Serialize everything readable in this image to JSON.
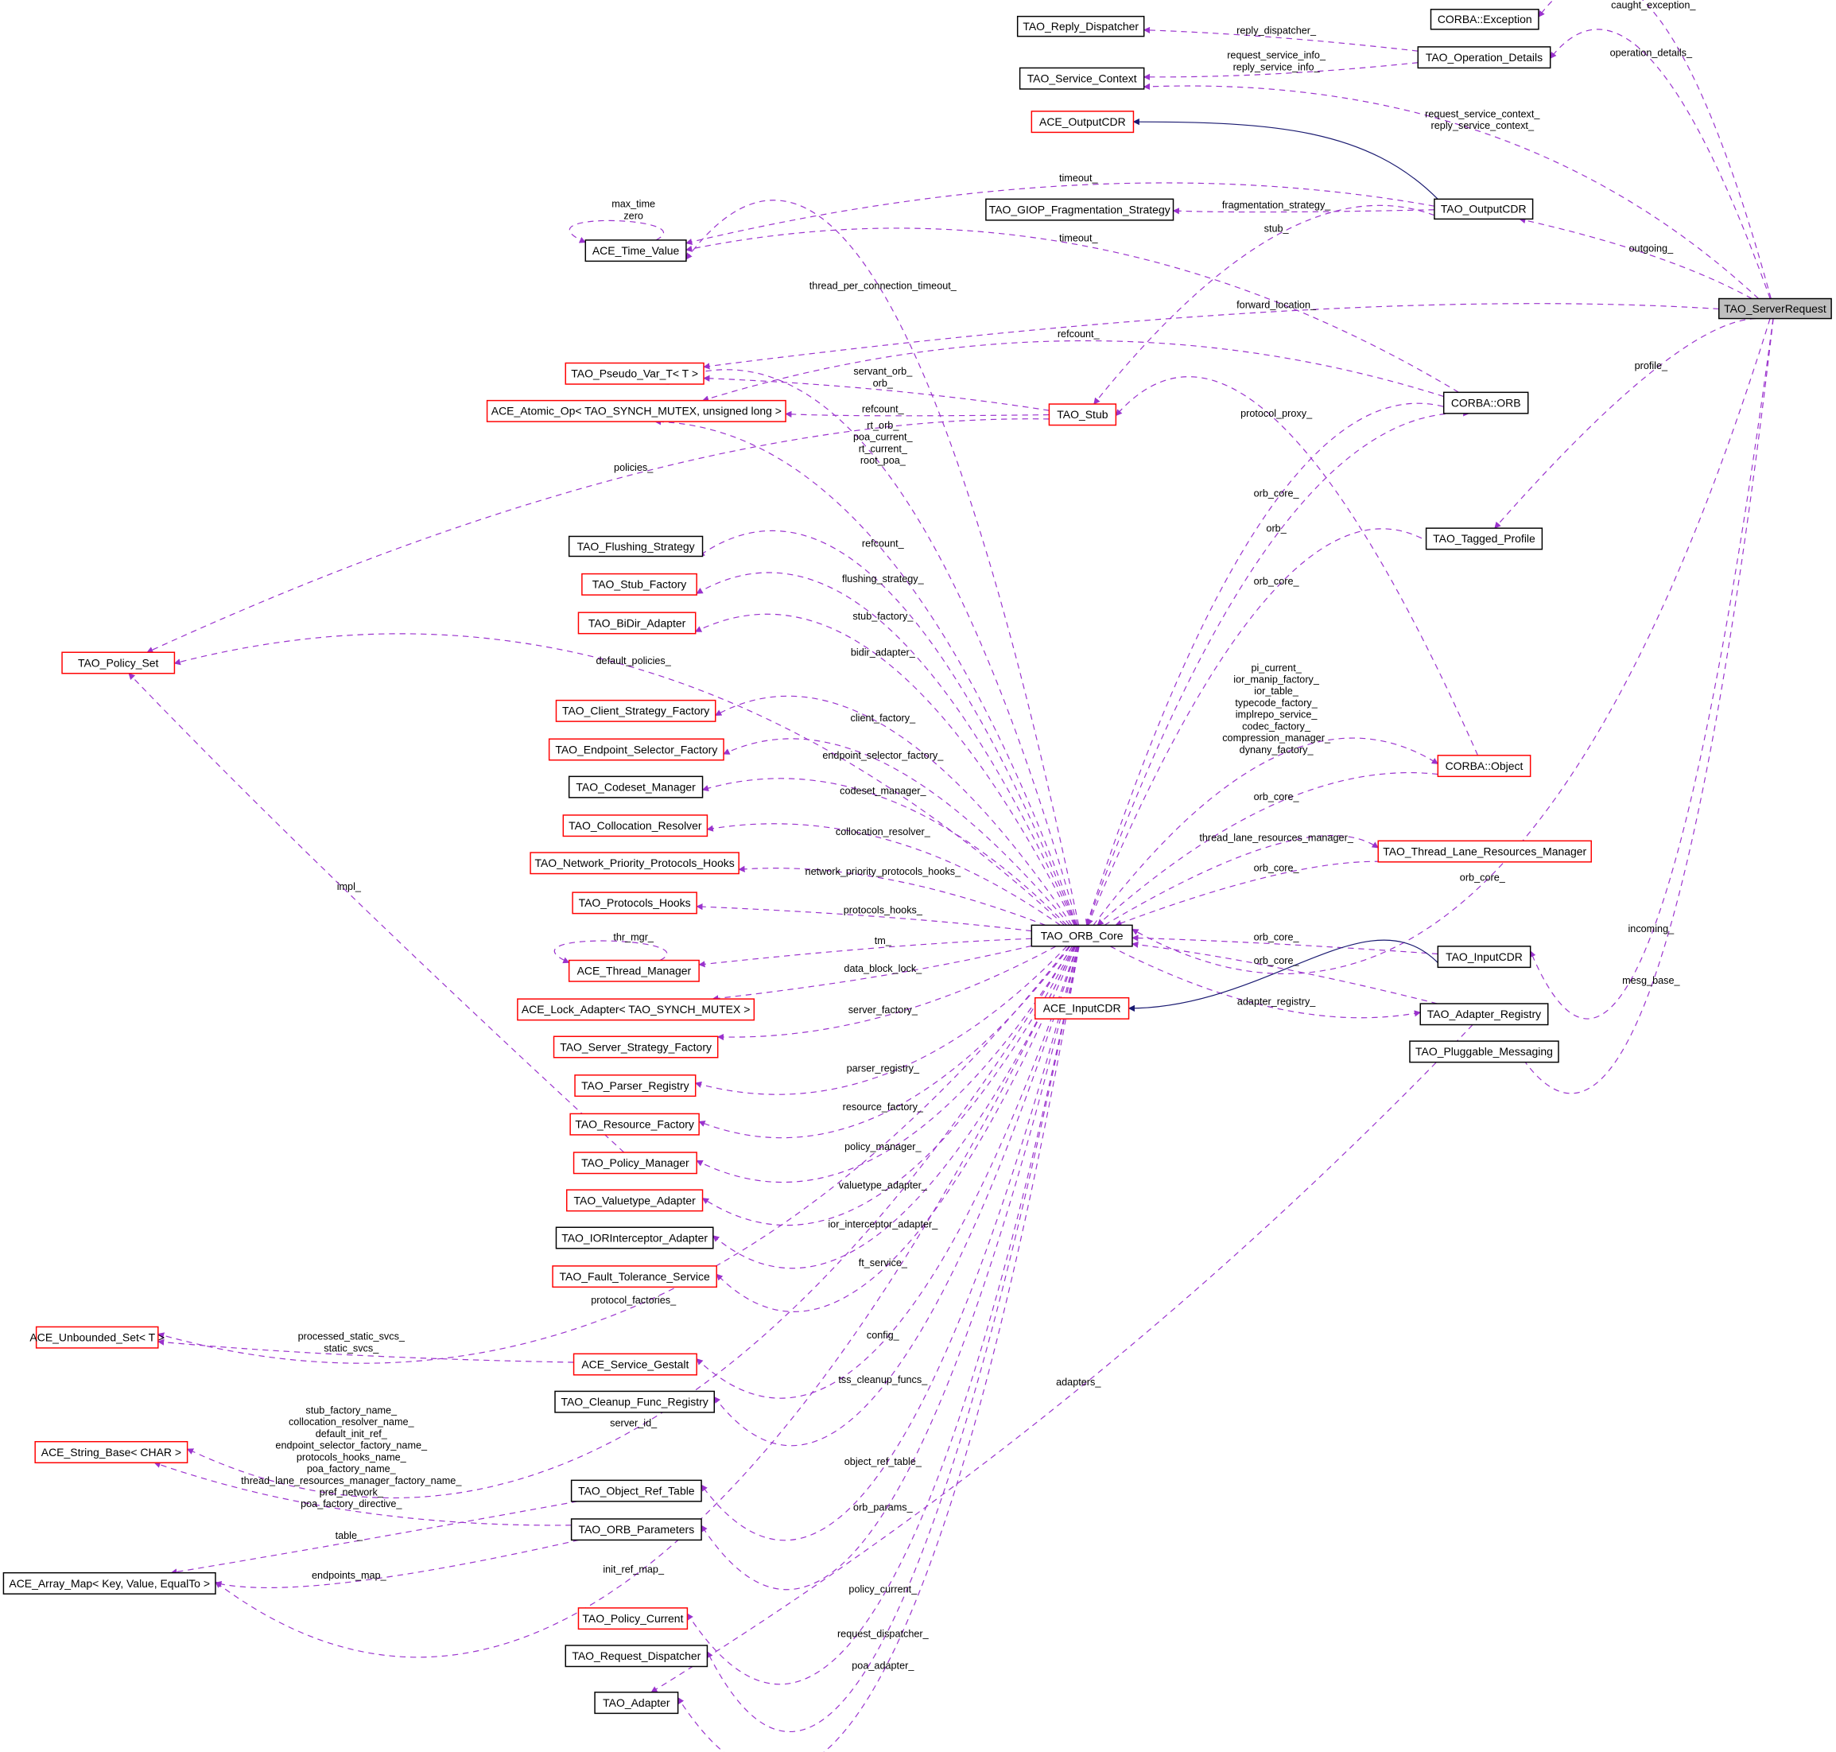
{
  "colors": {
    "usage_edge": "#9a32cd",
    "inheritance_edge": "#191970",
    "node_border": "#000000",
    "undocumented_border": "#ff0000",
    "focus_fill": "#bfbfbf"
  },
  "nodes": [
    {
      "id": "server_request",
      "label": "TAO_ServerRequest",
      "border": "black",
      "focus": true
    },
    {
      "id": "corba_exception",
      "label": "CORBA::Exception",
      "border": "black"
    },
    {
      "id": "reply_dispatcher",
      "label": "TAO_Reply_Dispatcher",
      "border": "black"
    },
    {
      "id": "operation_details",
      "label": "TAO_Operation_Details",
      "border": "black"
    },
    {
      "id": "service_context",
      "label": "TAO_Service_Context",
      "border": "black"
    },
    {
      "id": "ace_output_cdr",
      "label": "ACE_OutputCDR",
      "border": "red"
    },
    {
      "id": "giop_frag",
      "label": "TAO_GIOP_Fragmentation_Strategy",
      "border": "black"
    },
    {
      "id": "tao_output_cdr",
      "label": "TAO_OutputCDR",
      "border": "black"
    },
    {
      "id": "time_value",
      "label": "ACE_Time_Value",
      "border": "black"
    },
    {
      "id": "pseudo_var",
      "label": "TAO_Pseudo_Var_T< T >",
      "border": "red"
    },
    {
      "id": "atomic_op",
      "label": "ACE_Atomic_Op< TAO_SYNCH_MUTEX, unsigned long >",
      "border": "red"
    },
    {
      "id": "tao_stub",
      "label": "TAO_Stub",
      "border": "red"
    },
    {
      "id": "corba_orb",
      "label": "CORBA::ORB",
      "border": "black"
    },
    {
      "id": "tagged_profile",
      "label": "TAO_Tagged_Profile",
      "border": "black"
    },
    {
      "id": "flushing_strategy",
      "label": "TAO_Flushing_Strategy",
      "border": "black"
    },
    {
      "id": "stub_factory",
      "label": "TAO_Stub_Factory",
      "border": "red"
    },
    {
      "id": "bidir_adapter",
      "label": "TAO_BiDir_Adapter",
      "border": "red"
    },
    {
      "id": "policy_set",
      "label": "TAO_Policy_Set",
      "border": "red"
    },
    {
      "id": "client_strategy",
      "label": "TAO_Client_Strategy_Factory",
      "border": "red"
    },
    {
      "id": "endpoint_selector",
      "label": "TAO_Endpoint_Selector_Factory",
      "border": "red"
    },
    {
      "id": "codeset_manager",
      "label": "TAO_Codeset_Manager",
      "border": "black"
    },
    {
      "id": "corba_object",
      "label": "CORBA::Object",
      "border": "red"
    },
    {
      "id": "collocation_resolver",
      "label": "TAO_Collocation_Resolver",
      "border": "red"
    },
    {
      "id": "thread_lane",
      "label": "TAO_Thread_Lane_Resources_Manager",
      "border": "red"
    },
    {
      "id": "network_priority",
      "label": "TAO_Network_Priority_Protocols_Hooks",
      "border": "red"
    },
    {
      "id": "protocols_hooks",
      "label": "TAO_Protocols_Hooks",
      "border": "red"
    },
    {
      "id": "orb_core",
      "label": "TAO_ORB_Core",
      "border": "black"
    },
    {
      "id": "thread_manager",
      "label": "ACE_Thread_Manager",
      "border": "red"
    },
    {
      "id": "tao_input_cdr",
      "label": "TAO_InputCDR",
      "border": "black"
    },
    {
      "id": "lock_adapter",
      "label": "ACE_Lock_Adapter< TAO_SYNCH_MUTEX >",
      "border": "red"
    },
    {
      "id": "ace_input_cdr",
      "label": "ACE_InputCDR",
      "border": "red"
    },
    {
      "id": "adapter_registry",
      "label": "TAO_Adapter_Registry",
      "border": "black"
    },
    {
      "id": "pluggable_messaging",
      "label": "TAO_Pluggable_Messaging",
      "border": "black"
    },
    {
      "id": "server_strategy",
      "label": "TAO_Server_Strategy_Factory",
      "border": "red"
    },
    {
      "id": "parser_registry",
      "label": "TAO_Parser_Registry",
      "border": "red"
    },
    {
      "id": "resource_factory",
      "label": "TAO_Resource_Factory",
      "border": "red"
    },
    {
      "id": "policy_manager",
      "label": "TAO_Policy_Manager",
      "border": "red"
    },
    {
      "id": "valuetype_adapter",
      "label": "TAO_Valuetype_Adapter",
      "border": "red"
    },
    {
      "id": "ior_interceptor",
      "label": "TAO_IORInterceptor_Adapter",
      "border": "black"
    },
    {
      "id": "fault_tolerance",
      "label": "TAO_Fault_Tolerance_Service",
      "border": "red"
    },
    {
      "id": "unbounded_set",
      "label": "ACE_Unbounded_Set< T >",
      "border": "red"
    },
    {
      "id": "service_gestalt",
      "label": "ACE_Service_Gestalt",
      "border": "red"
    },
    {
      "id": "cleanup_registry",
      "label": "TAO_Cleanup_Func_Registry",
      "border": "black"
    },
    {
      "id": "string_base",
      "label": "ACE_String_Base< CHAR >",
      "border": "red"
    },
    {
      "id": "object_ref_table",
      "label": "TAO_Object_Ref_Table",
      "border": "black"
    },
    {
      "id": "orb_parameters",
      "label": "TAO_ORB_Parameters",
      "border": "black"
    },
    {
      "id": "array_map",
      "label": "ACE_Array_Map< Key, Value, EqualTo >",
      "border": "black"
    },
    {
      "id": "policy_current",
      "label": "TAO_Policy_Current",
      "border": "red"
    },
    {
      "id": "request_dispatcher",
      "label": "TAO_Request_Dispatcher",
      "border": "black"
    },
    {
      "id": "tao_adapter",
      "label": "TAO_Adapter",
      "border": "black"
    }
  ],
  "edges": [
    {
      "from": "server_request",
      "to": "corba_exception",
      "style": "usage",
      "label": [
        "caught_exception_"
      ]
    },
    {
      "from": "operation_details",
      "to": "reply_dispatcher",
      "style": "usage",
      "label": [
        "reply_dispatcher_"
      ]
    },
    {
      "from": "operation_details",
      "to": "service_context",
      "style": "usage",
      "label": [
        "request_service_info_",
        "reply_service_info_"
      ]
    },
    {
      "from": "server_request",
      "to": "operation_details",
      "style": "usage",
      "label": [
        "operation_details_"
      ]
    },
    {
      "from": "server_request",
      "to": "service_context",
      "style": "usage",
      "label": [
        "request_service_context_",
        "reply_service_context_"
      ]
    },
    {
      "from": "tao_output_cdr",
      "to": "ace_output_cdr",
      "style": "inheritance",
      "label": []
    },
    {
      "from": "tao_output_cdr",
      "to": "time_value",
      "style": "usage",
      "label": [
        "timeout_"
      ]
    },
    {
      "from": "tao_output_cdr",
      "to": "giop_frag",
      "style": "usage",
      "label": [
        "fragmentation_strategy_"
      ]
    },
    {
      "from": "tao_output_cdr",
      "to": "tao_stub",
      "style": "usage",
      "label": [
        "stub_"
      ]
    },
    {
      "from": "server_request",
      "to": "tao_output_cdr",
      "style": "usage",
      "label": [
        "outgoing_"
      ]
    },
    {
      "from": "time_value",
      "to": "time_value",
      "style": "usage",
      "label": [
        "max_time",
        "zero"
      ]
    },
    {
      "from": "corba_orb",
      "to": "time_value",
      "style": "usage",
      "label": [
        "timeout_"
      ]
    },
    {
      "from": "orb_core",
      "to": "time_value",
      "style": "usage",
      "label": [
        "thread_per_connection_timeout_"
      ]
    },
    {
      "from": "server_request",
      "to": "pseudo_var",
      "style": "usage",
      "label": [
        "forward_location_"
      ]
    },
    {
      "from": "corba_orb",
      "to": "atomic_op",
      "style": "usage",
      "label": [
        "refcount_"
      ]
    },
    {
      "from": "tao_stub",
      "to": "pseudo_var",
      "style": "usage",
      "label": [
        "servant_orb_",
        "orb_"
      ]
    },
    {
      "from": "tao_stub",
      "to": "atomic_op",
      "style": "usage",
      "label": [
        "refcount_"
      ]
    },
    {
      "from": "orb_core",
      "to": "pseudo_var",
      "style": "usage",
      "label": [
        "rt_orb_",
        "poa_current_",
        "rt_current_",
        "root_poa_"
      ]
    },
    {
      "from": "orb_core",
      "to": "atomic_op",
      "style": "usage",
      "label": [
        "refcount_"
      ]
    },
    {
      "from": "tao_stub",
      "to": "policy_set",
      "style": "usage",
      "label": [
        "policies_"
      ]
    },
    {
      "from": "corba_object",
      "to": "tao_stub",
      "style": "usage",
      "label": [
        "protocol_proxy_"
      ]
    },
    {
      "from": "server_request",
      "to": "tagged_profile",
      "style": "usage",
      "label": [
        "profile_"
      ]
    },
    {
      "from": "corba_orb",
      "to": "orb_core",
      "style": "usage",
      "label": [
        "orb_core_"
      ]
    },
    {
      "from": "orb_core",
      "to": "corba_orb",
      "style": "usage",
      "label": [
        "orb_"
      ]
    },
    {
      "from": "tagged_profile",
      "to": "orb_core",
      "style": "usage",
      "label": [
        "orb_core_"
      ]
    },
    {
      "from": "orb_core",
      "to": "flushing_strategy",
      "style": "usage",
      "label": [
        "flushing_strategy_"
      ]
    },
    {
      "from": "orb_core",
      "to": "stub_factory",
      "style": "usage",
      "label": [
        "stub_factory_"
      ]
    },
    {
      "from": "orb_core",
      "to": "bidir_adapter",
      "style": "usage",
      "label": [
        "bidir_adapter_"
      ]
    },
    {
      "from": "orb_core",
      "to": "policy_set",
      "style": "usage",
      "label": [
        "default_policies_"
      ]
    },
    {
      "from": "orb_core",
      "to": "client_strategy",
      "style": "usage",
      "label": [
        "client_factory_"
      ]
    },
    {
      "from": "orb_core",
      "to": "endpoint_selector",
      "style": "usage",
      "label": [
        "endpoint_selector_factory_"
      ]
    },
    {
      "from": "orb_core",
      "to": "codeset_manager",
      "style": "usage",
      "label": [
        "codeset_manager_"
      ]
    },
    {
      "from": "orb_core",
      "to": "corba_object",
      "style": "usage",
      "label": [
        "pi_current_",
        "ior_manip_factory_",
        "ior_table_",
        "typecode_factory_",
        "implrepo_service_",
        "codec_factory_",
        "compression_manager_",
        "dynany_factory_"
      ]
    },
    {
      "from": "corba_object",
      "to": "orb_core",
      "style": "usage",
      "label": [
        "orb_core_"
      ]
    },
    {
      "from": "orb_core",
      "to": "collocation_resolver",
      "style": "usage",
      "label": [
        "collocation_resolver_"
      ]
    },
    {
      "from": "orb_core",
      "to": "thread_lane",
      "style": "usage",
      "label": [
        "thread_lane_resources_manager_"
      ]
    },
    {
      "from": "thread_lane",
      "to": "orb_core",
      "style": "usage",
      "label": [
        "orb_core_"
      ]
    },
    {
      "from": "server_request",
      "to": "orb_core",
      "style": "usage",
      "label": [
        "orb_core_"
      ]
    },
    {
      "from": "orb_core",
      "to": "network_priority",
      "style": "usage",
      "label": [
        "network_priority_protocols_hooks_"
      ]
    },
    {
      "from": "orb_core",
      "to": "protocols_hooks",
      "style": "usage",
      "label": [
        "protocols_hooks_"
      ]
    },
    {
      "from": "orb_core",
      "to": "thread_manager",
      "style": "usage",
      "label": [
        "tm_"
      ]
    },
    {
      "from": "thread_manager",
      "to": "thread_manager",
      "style": "usage",
      "label": [
        "thr_mgr_"
      ]
    },
    {
      "from": "orb_core",
      "to": "lock_adapter",
      "style": "usage",
      "label": [
        "data_block_lock_"
      ]
    },
    {
      "from": "tao_input_cdr",
      "to": "orb_core",
      "style": "usage",
      "label": [
        "orb_core_"
      ]
    },
    {
      "from": "adapter_registry",
      "to": "orb_core",
      "style": "usage",
      "label": [
        "orb_core_"
      ]
    },
    {
      "from": "orb_core",
      "to": "adapter_registry",
      "style": "usage",
      "label": [
        "adapter_registry_"
      ]
    },
    {
      "from": "tao_input_cdr",
      "to": "ace_input_cdr",
      "style": "inheritance",
      "label": []
    },
    {
      "from": "server_request",
      "to": "tao_input_cdr",
      "style": "usage",
      "label": [
        "incoming_"
      ]
    },
    {
      "from": "server_request",
      "to": "pluggable_messaging",
      "style": "usage",
      "label": [
        "mesg_base_"
      ]
    },
    {
      "from": "orb_core",
      "to": "server_strategy",
      "style": "usage",
      "label": [
        "server_factory_"
      ]
    },
    {
      "from": "orb_core",
      "to": "parser_registry",
      "style": "usage",
      "label": [
        "parser_registry_"
      ]
    },
    {
      "from": "orb_core",
      "to": "resource_factory",
      "style": "usage",
      "label": [
        "resource_factory_"
      ]
    },
    {
      "from": "policy_manager",
      "to": "policy_set",
      "style": "usage",
      "label": [
        "impl_"
      ]
    },
    {
      "from": "orb_core",
      "to": "policy_manager",
      "style": "usage",
      "label": [
        "policy_manager_"
      ]
    },
    {
      "from": "orb_core",
      "to": "valuetype_adapter",
      "style": "usage",
      "label": [
        "valuetype_adapter_"
      ]
    },
    {
      "from": "orb_core",
      "to": "ior_interceptor",
      "style": "usage",
      "label": [
        "ior_interceptor_adapter_"
      ]
    },
    {
      "from": "orb_core",
      "to": "fault_tolerance",
      "style": "usage",
      "label": [
        "ft_service_"
      ]
    },
    {
      "from": "orb_core",
      "to": "unbounded_set",
      "style": "usage",
      "label": [
        "protocol_factories_"
      ]
    },
    {
      "from": "service_gestalt",
      "to": "unbounded_set",
      "style": "usage",
      "label": [
        "processed_static_svcs_",
        "static_svcs_"
      ]
    },
    {
      "from": "orb_core",
      "to": "service_gestalt",
      "style": "usage",
      "label": [
        "config_"
      ]
    },
    {
      "from": "orb_core",
      "to": "cleanup_registry",
      "style": "usage",
      "label": [
        "tss_cleanup_funcs_"
      ]
    },
    {
      "from": "orb_core",
      "to": "string_base",
      "style": "usage",
      "label": [
        "server_id_"
      ]
    },
    {
      "from": "orb_parameters",
      "to": "string_base",
      "style": "usage",
      "label": [
        "stub_factory_name_",
        "collocation_resolver_name_",
        "default_init_ref_",
        "endpoint_selector_factory_name_",
        "protocols_hooks_name_",
        "poa_factory_name_",
        "thread_lane_resources_manager_factory_name_",
        "pref_network_",
        "poa_factory_directive_"
      ]
    },
    {
      "from": "orb_core",
      "to": "object_ref_table",
      "style": "usage",
      "label": [
        "object_ref_table_"
      ]
    },
    {
      "from": "orb_core",
      "to": "orb_parameters",
      "style": "usage",
      "label": [
        "orb_params_"
      ]
    },
    {
      "from": "object_ref_table",
      "to": "array_map",
      "style": "usage",
      "label": [
        "table_"
      ]
    },
    {
      "from": "orb_parameters",
      "to": "array_map",
      "style": "usage",
      "label": [
        "endpoints_map_"
      ]
    },
    {
      "from": "orb_core",
      "to": "array_map",
      "style": "usage",
      "label": [
        "init_ref_map_"
      ]
    },
    {
      "from": "orb_core",
      "to": "policy_current",
      "style": "usage",
      "label": [
        "policy_current_"
      ]
    },
    {
      "from": "orb_core",
      "to": "request_dispatcher",
      "style": "usage",
      "label": [
        "request_dispatcher_"
      ]
    },
    {
      "from": "orb_core",
      "to": "tao_adapter",
      "style": "usage",
      "label": [
        "poa_adapter_"
      ]
    },
    {
      "from": "adapter_registry",
      "to": "tao_adapter",
      "style": "usage",
      "label": [
        "adapters_"
      ]
    }
  ]
}
